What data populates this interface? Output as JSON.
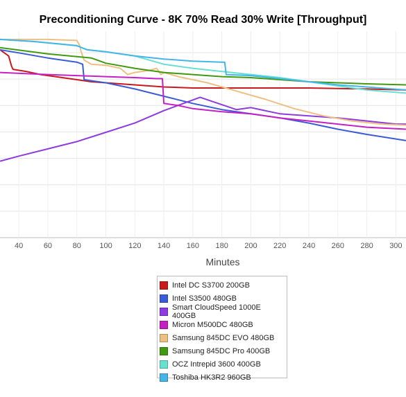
{
  "chart_data": {
    "type": "line",
    "title": "Preconditioning Curve - 8K 70% Read 30% Write [Throughput]",
    "xlabel": "Minutes",
    "ylabel": "",
    "xlim": [
      27,
      307
    ],
    "ylim": [
      0,
      100
    ],
    "x_ticks": [
      40,
      60,
      80,
      100,
      120,
      140,
      160,
      180,
      200,
      220,
      240,
      260,
      280,
      300
    ],
    "y_gridlines": [
      0,
      12.8,
      25.6,
      38.4,
      51.2,
      64,
      76.8,
      89.6
    ],
    "grid": true,
    "legend_position": "bottom-center",
    "series": [
      {
        "name": "Intel DC S3700 200GB",
        "color": "#c8191d",
        "points": [
          [
            27,
            91
          ],
          [
            33,
            88
          ],
          [
            35,
            83
          ],
          [
            36,
            81.5
          ],
          [
            45,
            80.5
          ],
          [
            55,
            79
          ],
          [
            70,
            77.5
          ],
          [
            80,
            76.5
          ],
          [
            90,
            75.5
          ],
          [
            100,
            75
          ],
          [
            120,
            74
          ],
          [
            140,
            73
          ],
          [
            160,
            72.5
          ],
          [
            200,
            72.5
          ],
          [
            240,
            72.5
          ],
          [
            280,
            72
          ],
          [
            307,
            71.5
          ]
        ]
      },
      {
        "name": "Intel S3500 480GB",
        "color": "#3a5bd9",
        "points": [
          [
            27,
            91
          ],
          [
            40,
            89.5
          ],
          [
            60,
            87
          ],
          [
            70,
            86
          ],
          [
            80,
            85
          ],
          [
            84,
            84
          ],
          [
            85,
            76.5
          ],
          [
            100,
            75
          ],
          [
            120,
            72
          ],
          [
            140,
            68.5
          ],
          [
            160,
            65
          ],
          [
            180,
            62
          ],
          [
            200,
            60
          ],
          [
            220,
            58
          ],
          [
            240,
            55.5
          ],
          [
            260,
            52.5
          ],
          [
            280,
            50
          ],
          [
            307,
            47
          ]
        ]
      },
      {
        "name": "Smart CloudSpeed 1000E 400GB",
        "color": "#8e3ae0",
        "points": [
          [
            27,
            37
          ],
          [
            40,
            39.5
          ],
          [
            60,
            43
          ],
          [
            80,
            46.5
          ],
          [
            100,
            51
          ],
          [
            120,
            55.5
          ],
          [
            140,
            61.5
          ],
          [
            165,
            68
          ],
          [
            190,
            62
          ],
          [
            195,
            62.5
          ],
          [
            200,
            63
          ],
          [
            220,
            60
          ],
          [
            240,
            59
          ],
          [
            260,
            58
          ],
          [
            280,
            56.5
          ],
          [
            300,
            55
          ],
          [
            307,
            55
          ]
        ]
      },
      {
        "name": "Micron M500DC 480GB",
        "color": "#c520c4",
        "points": [
          [
            27,
            80
          ],
          [
            60,
            79
          ],
          [
            100,
            78
          ],
          [
            120,
            77.5
          ],
          [
            135,
            77
          ],
          [
            139,
            77
          ],
          [
            140,
            65
          ],
          [
            150,
            64
          ],
          [
            160,
            62.5
          ],
          [
            180,
            61
          ],
          [
            200,
            60
          ],
          [
            220,
            58
          ],
          [
            240,
            56.5
          ],
          [
            260,
            55
          ],
          [
            280,
            53.5
          ],
          [
            307,
            52.5
          ]
        ]
      },
      {
        "name": "Samsung 845DC EVO 480GB",
        "color": "#eebf82",
        "points": [
          [
            27,
            96
          ],
          [
            60,
            96
          ],
          [
            80,
            95.5
          ],
          [
            82,
            93
          ],
          [
            83,
            90
          ],
          [
            85,
            86
          ],
          [
            90,
            84
          ],
          [
            100,
            83.5
          ],
          [
            110,
            82
          ],
          [
            115,
            79
          ],
          [
            120,
            80
          ],
          [
            130,
            81
          ],
          [
            135,
            82
          ],
          [
            138,
            79
          ],
          [
            140,
            80
          ],
          [
            150,
            78
          ],
          [
            170,
            75
          ],
          [
            190,
            71
          ],
          [
            210,
            67
          ],
          [
            230,
            62.5
          ],
          [
            250,
            59
          ],
          [
            270,
            56.5
          ],
          [
            290,
            55
          ],
          [
            307,
            54.5
          ]
        ]
      },
      {
        "name": "Samsung 845DC Pro 400GB",
        "color": "#3f9a10",
        "points": [
          [
            27,
            92
          ],
          [
            60,
            89
          ],
          [
            90,
            87
          ],
          [
            100,
            84.5
          ],
          [
            120,
            82
          ],
          [
            140,
            80
          ],
          [
            160,
            79
          ],
          [
            180,
            78
          ],
          [
            200,
            77.5
          ],
          [
            220,
            76.5
          ],
          [
            240,
            75.5
          ],
          [
            260,
            75
          ],
          [
            280,
            74.5
          ],
          [
            307,
            74
          ]
        ]
      },
      {
        "name": "OCZ Intrepid 3600 400GB",
        "color": "#66e0d0",
        "points": [
          [
            27,
            96
          ],
          [
            50,
            95
          ],
          [
            80,
            93
          ],
          [
            87,
            91
          ],
          [
            100,
            90
          ],
          [
            120,
            88
          ],
          [
            140,
            84
          ],
          [
            160,
            82
          ],
          [
            180,
            80.5
          ],
          [
            200,
            79
          ],
          [
            220,
            77.5
          ],
          [
            240,
            75.5
          ],
          [
            260,
            73.5
          ],
          [
            280,
            71.5
          ],
          [
            307,
            70
          ]
        ]
      },
      {
        "name": "Toshiba HK3R2 960GB",
        "color": "#44b5e8",
        "points": [
          [
            27,
            96
          ],
          [
            50,
            95
          ],
          [
            80,
            93
          ],
          [
            87,
            91
          ],
          [
            100,
            90
          ],
          [
            120,
            88
          ],
          [
            140,
            86.5
          ],
          [
            160,
            85.5
          ],
          [
            180,
            85
          ],
          [
            182,
            85
          ],
          [
            183,
            79
          ],
          [
            200,
            78.5
          ],
          [
            220,
            77
          ],
          [
            240,
            75.5
          ],
          [
            260,
            74
          ],
          [
            280,
            73
          ],
          [
            307,
            71.5
          ]
        ]
      }
    ]
  }
}
